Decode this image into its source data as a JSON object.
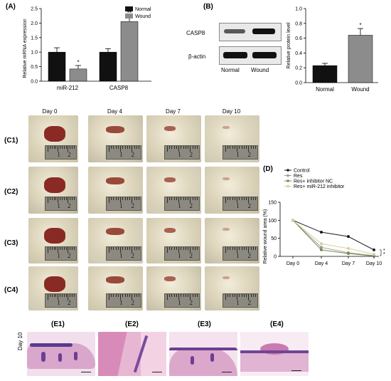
{
  "panels": {
    "A": "(A)",
    "B": "(B)",
    "D": "(D)",
    "C": [
      "(C1)",
      "(C2)",
      "(C3)",
      "(C4)"
    ],
    "E": [
      "(E1)",
      "(E2)",
      "(E3)",
      "(E4)"
    ]
  },
  "days": [
    "Day 0",
    "Day 4",
    "Day 7",
    "Day 10"
  ],
  "ruler_numbers": [
    "1",
    "2"
  ],
  "blot": {
    "labels": [
      "CASP8",
      "β-actin"
    ],
    "lanes": [
      "Normal",
      "Wound"
    ]
  },
  "histology_row_label": "Day 10",
  "colors": {
    "normal": "#111111",
    "wound": "#8c8c8c",
    "control": "#1a1a1a",
    "res": "#9a9a9a",
    "res_nc": "#7a8c4a",
    "res_mir": "#d8cfa0"
  },
  "chart_data": [
    {
      "type": "bar",
      "ylabel": "Relative mRNA expression",
      "ylim": [
        0,
        2.5
      ],
      "yticks": [
        "0.0",
        "0.5",
        "1.0",
        "1.5",
        "2.0",
        "2.5"
      ],
      "categories": [
        "miR-212",
        "CASP8"
      ],
      "series": [
        {
          "name": "Normal",
          "values": [
            1.0,
            1.0
          ],
          "errors": [
            0.15,
            0.12
          ]
        },
        {
          "name": "Wound",
          "values": [
            0.42,
            2.05
          ],
          "errors": [
            0.12,
            0.18
          ]
        }
      ],
      "annotations": [
        "*",
        "**"
      ],
      "legend": "top-right"
    },
    {
      "type": "bar",
      "ylabel": "Relative protein level",
      "ylim": [
        0,
        1.0
      ],
      "yticks": [
        "0.0",
        "0.2",
        "0.4",
        "0.6",
        "0.8",
        "1.0"
      ],
      "categories": [
        "Normal",
        "Wound"
      ],
      "values": [
        0.23,
        0.64
      ],
      "errors": [
        0.03,
        0.09
      ],
      "annotations": [
        "",
        "*"
      ]
    },
    {
      "type": "line",
      "ylabel": "Relative wound area (%)",
      "ylim": [
        0,
        150
      ],
      "yticks": [
        "0",
        "50",
        "100",
        "150"
      ],
      "x": [
        "Day 0",
        "Day 4",
        "Day 7",
        "Day 10"
      ],
      "series": [
        {
          "name": "Control",
          "values": [
            100,
            67,
            55,
            18
          ]
        },
        {
          "name": "Res",
          "values": [
            100,
            25,
            10,
            2
          ]
        },
        {
          "name": "Res+ inhibitor NC",
          "values": [
            100,
            18,
            8,
            1
          ]
        },
        {
          "name": "Res+ miR-212 inhibitor",
          "values": [
            100,
            35,
            22,
            6
          ]
        }
      ],
      "annotations": [
        "*",
        "*"
      ],
      "legend": "top"
    }
  ]
}
